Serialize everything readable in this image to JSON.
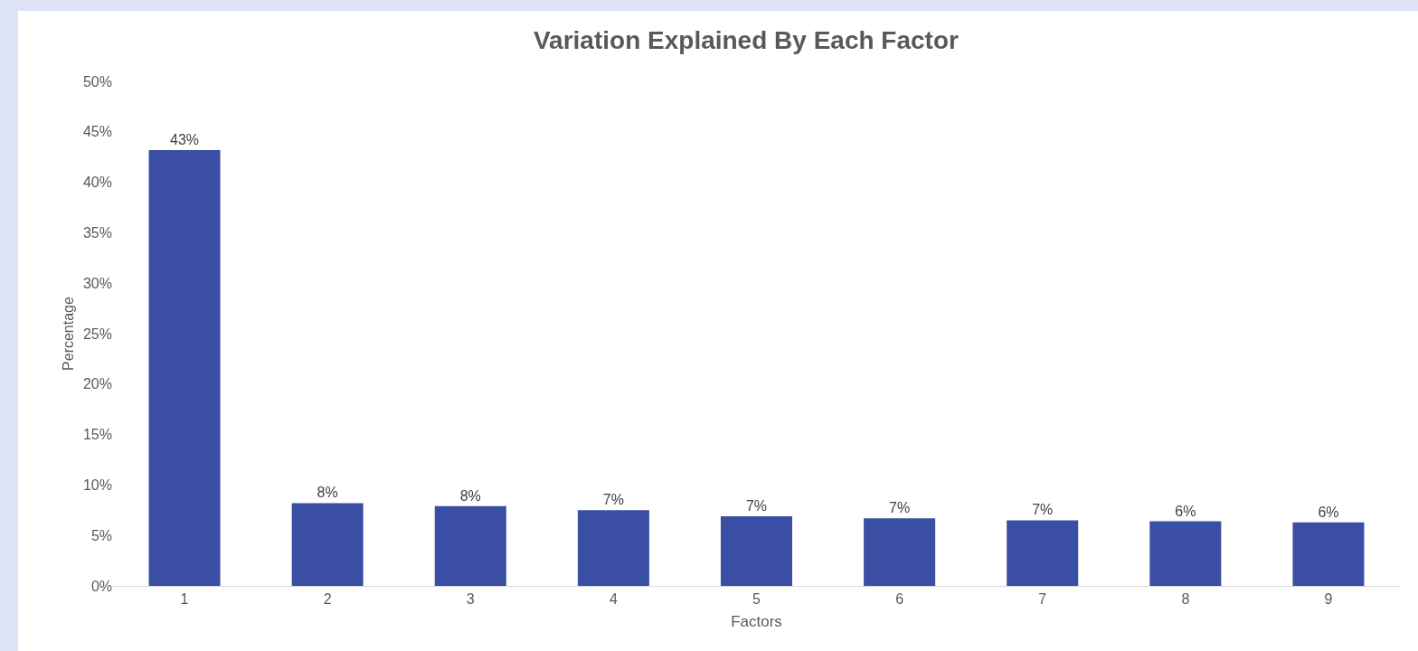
{
  "chart_data": {
    "type": "bar",
    "title": "Variation Explained By Each Factor",
    "xlabel": "Factors",
    "ylabel": "Percentage",
    "categories": [
      "1",
      "2",
      "3",
      "4",
      "5",
      "6",
      "7",
      "8",
      "9"
    ],
    "values": [
      43.2,
      8.2,
      7.9,
      7.5,
      6.9,
      6.7,
      6.5,
      6.4,
      6.3
    ],
    "value_labels": [
      "43%",
      "8%",
      "8%",
      "7%",
      "7%",
      "7%",
      "7%",
      "6%",
      "6%"
    ],
    "color": "#3a4fa3",
    "ylim": [
      0,
      50
    ],
    "yticks": [
      {
        "value": 0,
        "label": "0%"
      },
      {
        "value": 5,
        "label": "5%"
      },
      {
        "value": 10,
        "label": "10%"
      },
      {
        "value": 15,
        "label": "15%"
      },
      {
        "value": 20,
        "label": "20%"
      },
      {
        "value": 25,
        "label": "25%"
      },
      {
        "value": 30,
        "label": "30%"
      },
      {
        "value": 35,
        "label": "35%"
      },
      {
        "value": 40,
        "label": "40%"
      },
      {
        "value": 45,
        "label": "45%"
      },
      {
        "value": 50,
        "label": "50%"
      }
    ]
  }
}
